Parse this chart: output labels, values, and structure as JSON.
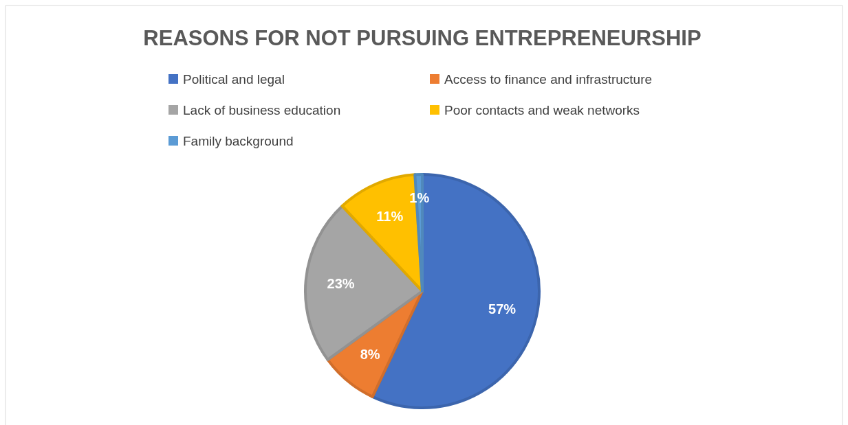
{
  "chart_data": {
    "type": "pie",
    "title": "REASONS FOR NOT PURSUING ENTREPRENEURSHIP",
    "categories": [
      "Political and legal",
      "Access to finance and infrastructure",
      "Lack of business education",
      "Poor contacts and weak networks",
      "Family background"
    ],
    "values": [
      57,
      8,
      23,
      11,
      1
    ],
    "colors": [
      "#4472c4",
      "#ed7d31",
      "#a5a5a5",
      "#ffc000",
      "#5b9bd5"
    ],
    "value_labels": [
      "57%",
      "8%",
      "23%",
      "11%",
      "1%"
    ],
    "legend": "top"
  }
}
